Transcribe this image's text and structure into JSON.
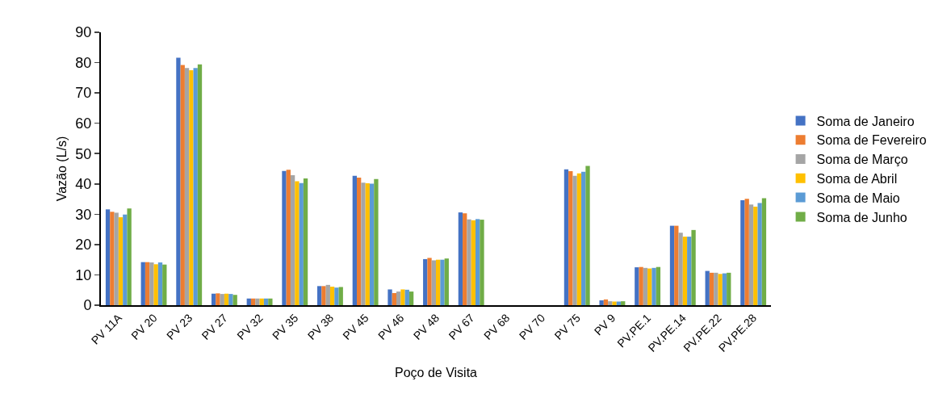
{
  "chart_data": {
    "type": "bar",
    "xlabel": "Poço de Visita",
    "ylabel": "Vazão (L/s)",
    "categories": [
      "PV 11A",
      "PV 20",
      "PV 23",
      "PV 27",
      "PV 32",
      "PV 35",
      "PV 38",
      "PV 45",
      "PV 46",
      "PV 48",
      "PV 67",
      "PV 68",
      "PV 70",
      "PV 75",
      "PV 9",
      "PV.PE.1",
      "PV.PE.14",
      "PV.PE.22",
      "PV.PE.28"
    ],
    "series": [
      {
        "name": "Soma de Janeiro",
        "color": "#4472c4",
        "values": [
          31.6,
          14.2,
          81.6,
          3.8,
          2.2,
          44.3,
          6.3,
          42.7,
          5.2,
          15.2,
          30.6,
          0,
          0,
          44.8,
          1.6,
          12.5,
          26.2,
          11.3,
          34.6
        ]
      },
      {
        "name": "Soma de Fevereiro",
        "color": "#ed7d31",
        "values": [
          30.8,
          14.2,
          79.2,
          3.9,
          2.2,
          44.7,
          6.3,
          42.1,
          4.0,
          15.6,
          30.3,
          0,
          0,
          44.2,
          1.9,
          12.6,
          26.2,
          10.7,
          35.1
        ]
      },
      {
        "name": "Soma de Março",
        "color": "#a5a5a5",
        "values": [
          30.5,
          14.1,
          78.2,
          3.7,
          2.2,
          42.9,
          6.7,
          40.4,
          4.5,
          14.8,
          28.3,
          0,
          0,
          42.7,
          1.3,
          12.3,
          23.9,
          10.7,
          33.2
        ]
      },
      {
        "name": "Soma de Abril",
        "color": "#ffc000",
        "values": [
          29.0,
          13.5,
          77.5,
          3.8,
          2.2,
          40.9,
          6.1,
          40.2,
          5.2,
          15.0,
          28.0,
          0,
          0,
          43.5,
          1.2,
          12.1,
          22.6,
          10.3,
          32.5
        ]
      },
      {
        "name": "Soma de Maio",
        "color": "#5b9bd5",
        "values": [
          29.9,
          14.1,
          78.2,
          3.7,
          2.2,
          40.3,
          5.8,
          40.1,
          5.1,
          15.0,
          28.4,
          0,
          0,
          44.0,
          1.2,
          12.3,
          22.6,
          10.5,
          33.7
        ]
      },
      {
        "name": "Soma de Junho",
        "color": "#70ad47",
        "values": [
          31.9,
          13.4,
          79.4,
          3.4,
          2.2,
          41.8,
          6.0,
          41.6,
          4.5,
          15.4,
          28.2,
          0,
          0,
          45.9,
          1.3,
          12.6,
          24.8,
          10.7,
          35.3
        ]
      }
    ],
    "ylim": [
      0,
      90
    ],
    "yticks": [
      0,
      10,
      20,
      30,
      40,
      50,
      60,
      70,
      80,
      90
    ],
    "grid": false,
    "legend": "right"
  }
}
